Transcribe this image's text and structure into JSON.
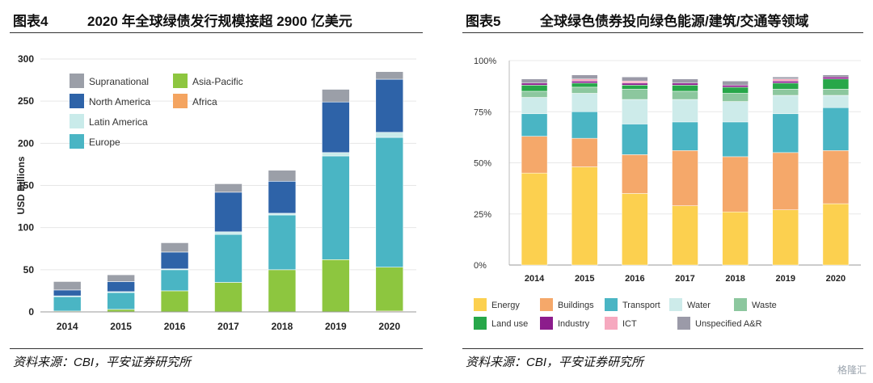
{
  "left": {
    "fig_label": "图表4",
    "fig_title": "2020 年全球绿债发行规模接超 2900 亿美元",
    "source": "资料来源：CBI，平安证券研究所"
  },
  "right": {
    "fig_label": "图表5",
    "fig_title": "全球绿色债券投向绿色能源/建筑/交通等领域",
    "source": "资料来源：CBI，平安证券研究所"
  },
  "watermark": "格隆汇",
  "chart_data": [
    {
      "type": "bar",
      "stacked": true,
      "title": "2020 年全球绿债发行规模接超 2900 亿美元",
      "xlabel": "",
      "ylabel": "USD Billions",
      "ylim": [
        0,
        300
      ],
      "yticks": [
        "0",
        "50",
        "100",
        "150",
        "200",
        "250",
        "300"
      ],
      "categories": [
        "2014",
        "2015",
        "2016",
        "2017",
        "2018",
        "2019",
        "2020"
      ],
      "grid": "horizontal",
      "legend_placement": "top-left",
      "series": [
        {
          "name": "Africa",
          "color": "#f4a460",
          "values": [
            0,
            0,
            0,
            0,
            0,
            0,
            1
          ]
        },
        {
          "name": "Asia-Pacific",
          "color": "#8dc63f",
          "values": [
            1,
            3,
            25,
            35,
            50,
            62,
            52
          ]
        },
        {
          "name": "Europe",
          "color": "#4ab5c4",
          "values": [
            17,
            20,
            25,
            57,
            65,
            123,
            154
          ]
        },
        {
          "name": "Latin America",
          "color": "#c9ebea",
          "values": [
            1,
            1,
            1,
            3,
            2,
            4,
            6
          ]
        },
        {
          "name": "North America",
          "color": "#2e63a8",
          "values": [
            7,
            12,
            20,
            47,
            38,
            60,
            63
          ]
        },
        {
          "name": "Supranational",
          "color": "#9b9fa8",
          "values": [
            10,
            8,
            11,
            10,
            13,
            15,
            9
          ]
        }
      ],
      "legend_order": [
        "Supranational",
        "Asia-Pacific",
        "North America",
        "Africa",
        "Latin America",
        "Europe"
      ]
    },
    {
      "type": "bar",
      "stacked": true,
      "percent": true,
      "title": "全球绿色债券投向绿色能源/建筑/交通等领域",
      "xlabel": "",
      "ylabel": "",
      "ylim": [
        0,
        100
      ],
      "yticks": [
        "0%",
        "25%",
        "50%",
        "75%",
        "100%"
      ],
      "categories": [
        "2014",
        "2015",
        "2016",
        "2017",
        "2018",
        "2019",
        "2020"
      ],
      "grid": "horizontal",
      "legend_placement": "bottom",
      "series": [
        {
          "name": "Energy",
          "color": "#fcd04f",
          "values": [
            45,
            48,
            35,
            29,
            26,
            27,
            30
          ]
        },
        {
          "name": "Buildings",
          "color": "#f5a86a",
          "values": [
            18,
            14,
            19,
            27,
            27,
            28,
            26
          ]
        },
        {
          "name": "Transport",
          "color": "#4ab5c4",
          "values": [
            11,
            13,
            15,
            14,
            17,
            19,
            21
          ]
        },
        {
          "name": "Water",
          "color": "#cdebea",
          "values": [
            8,
            9,
            12,
            11,
            10,
            9,
            6
          ]
        },
        {
          "name": "Waste",
          "color": "#8cc79e",
          "values": [
            3,
            3,
            5,
            4,
            4,
            3,
            3
          ]
        },
        {
          "name": "Land use",
          "color": "#27a749",
          "values": [
            3,
            2,
            2,
            3,
            3,
            3,
            5
          ]
        },
        {
          "name": "Industry",
          "color": "#8c1c8c",
          "values": [
            1,
            1,
            1,
            1,
            1,
            1,
            1
          ]
        },
        {
          "name": "ICT",
          "color": "#f6a9bf",
          "values": [
            0,
            1,
            1,
            0,
            0,
            1,
            0
          ]
        },
        {
          "name": "Unspecified A&R",
          "color": "#9b9aa8",
          "values": [
            2,
            2,
            2,
            2,
            2,
            1,
            1
          ]
        }
      ]
    }
  ]
}
